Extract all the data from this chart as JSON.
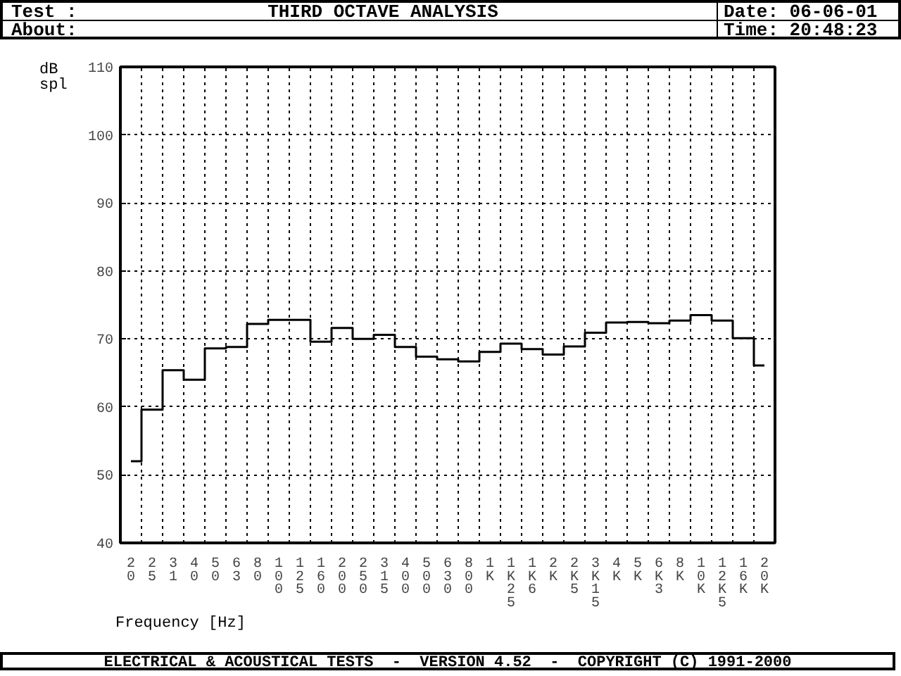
{
  "chart_data": {
    "type": "step",
    "title": "THIRD OCTAVE ANALYSIS",
    "annotations": [
      "Test :",
      "About:",
      "Date: 06-06-01",
      "Time: 20:48:23",
      "ELECTRICAL & ACOUSTICAL TESTS  -  VERSION 4.52  -  COPYRIGHT (C) 1991-2000"
    ],
    "xlabel": "Frequency [Hz]",
    "ylabel": "dB spl",
    "categories": [
      "20",
      "25",
      "31",
      "40",
      "50",
      "63",
      "80",
      "100",
      "125",
      "160",
      "200",
      "250",
      "315",
      "400",
      "500",
      "630",
      "800",
      "1K",
      "1K25",
      "1K6",
      "2K",
      "2K5",
      "3K15",
      "4K",
      "5K",
      "6K3",
      "8K",
      "10K",
      "12K5",
      "16K",
      "20K"
    ],
    "values": [
      52,
      59.6,
      65.4,
      64,
      68.6,
      68.8,
      72.2,
      72.8,
      72.8,
      69.6,
      71.6,
      70,
      70.6,
      68.8,
      67.4,
      67.0,
      66.7,
      68.1,
      69.3,
      68.5,
      67.7,
      68.9,
      70.9,
      72.4,
      72.5,
      72.3,
      72.7,
      73.5,
      72.7,
      70.1,
      66.1
    ],
    "color": "#000000",
    "ylim": [
      40,
      110
    ],
    "yticks": [
      40,
      50,
      60,
      70,
      80,
      90,
      100,
      110
    ],
    "grid": true,
    "line_style": "solid"
  }
}
